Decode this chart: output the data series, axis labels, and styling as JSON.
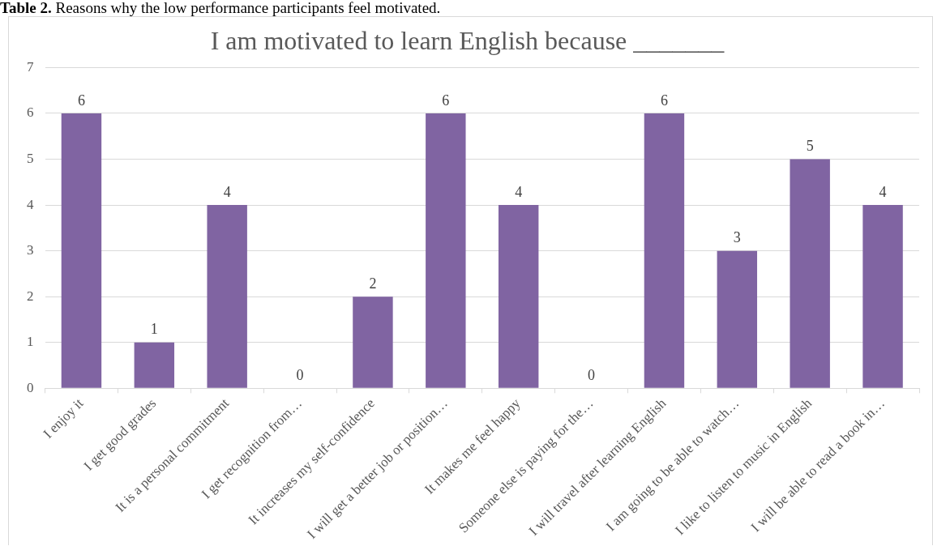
{
  "chart_data": {
    "type": "bar",
    "title": "I am motivated to learn English because _______",
    "categories": [
      "I enjoy it",
      "I get good grades",
      "It is a personal commitment",
      "I get recognition from…",
      "It increases my self-confidence",
      "I will get a better job or position…",
      "It makes me feel happy",
      "Someone else is paying for the…",
      "I will travel after learning English",
      "I am going to be able to watch…",
      "I like to listen to music in English",
      "I will be able to read a book in…"
    ],
    "values": [
      6,
      1,
      4,
      0,
      2,
      6,
      4,
      0,
      6,
      3,
      5,
      4
    ],
    "color": "#8064a2",
    "ylim": [
      0,
      7
    ],
    "yticks": [
      0,
      1,
      2,
      3,
      4,
      5,
      6,
      7
    ],
    "grid": "y",
    "data_labels": true,
    "legend": false,
    "annotations": [
      "Table 2. Reasons why the low performance participants feel motivated."
    ]
  }
}
